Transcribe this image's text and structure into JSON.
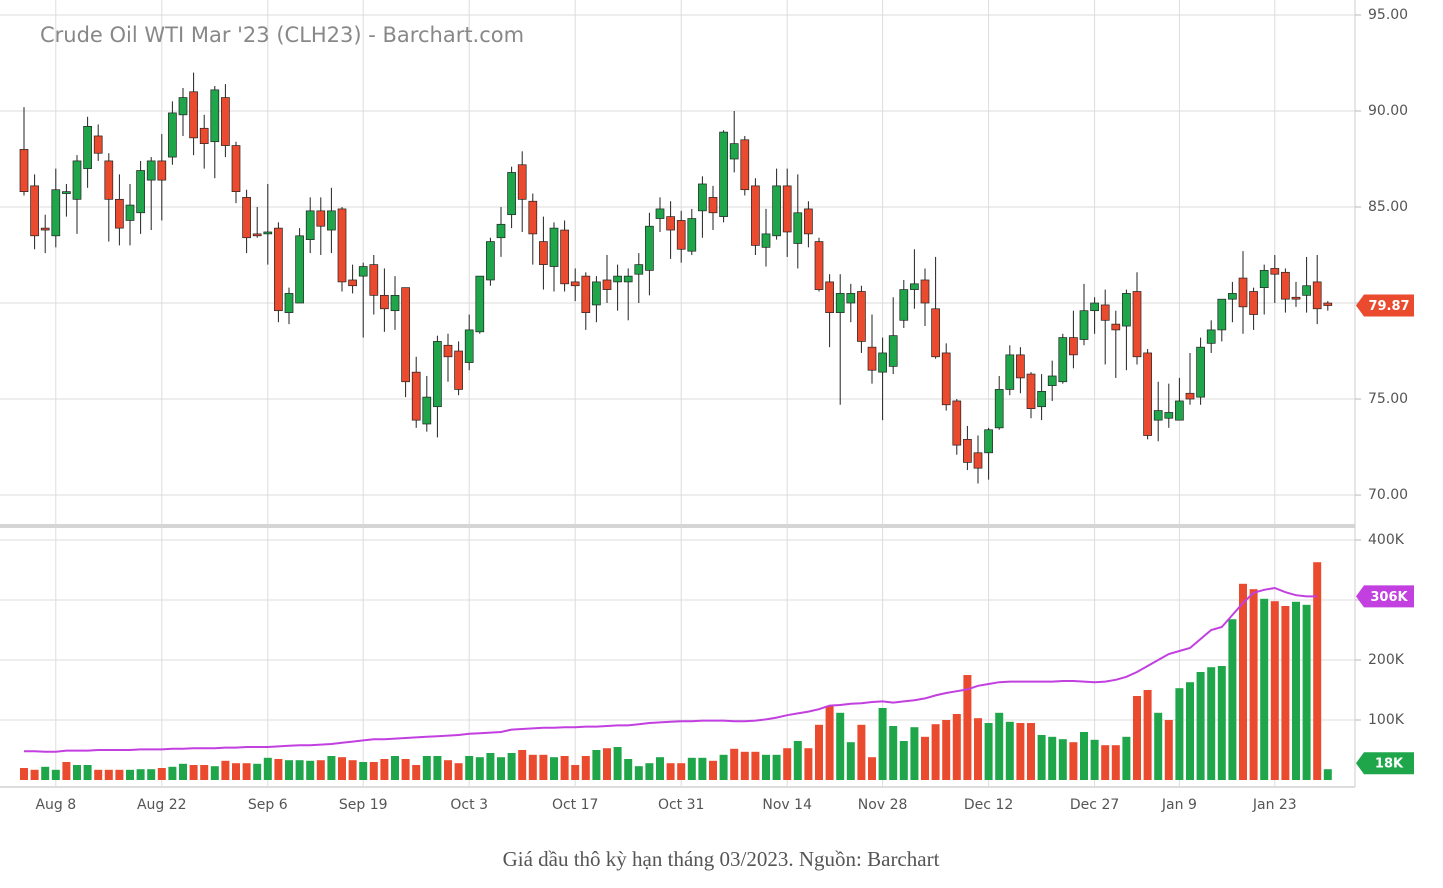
{
  "chart_data": {
    "type": "candlestick",
    "title": "Crude Oil WTI Mar '23 (CLH23) - Barchart.com",
    "categories": [
      null,
      null,
      null,
      "Aug 8",
      null,
      null,
      null,
      null,
      null,
      null,
      null,
      null,
      null,
      "Aug 22",
      null,
      null,
      null,
      null,
      null,
      null,
      null,
      null,
      null,
      "Sep 6",
      null,
      null,
      null,
      null,
      null,
      null,
      null,
      null,
      "Sep 19",
      null,
      null,
      null,
      null,
      null,
      null,
      null,
      null,
      null,
      "Oct 3",
      null,
      null,
      null,
      null,
      null,
      null,
      null,
      null,
      null,
      "Oct 17",
      null,
      null,
      null,
      null,
      null,
      null,
      null,
      null,
      null,
      "Oct 31",
      null,
      null,
      null,
      null,
      null,
      null,
      null,
      null,
      null,
      "Nov 14",
      null,
      null,
      null,
      null,
      null,
      null,
      null,
      null,
      "Nov 28",
      null,
      null,
      null,
      null,
      null,
      null,
      null,
      null,
      null,
      "Dec 12",
      null,
      null,
      null,
      null,
      null,
      null,
      null,
      null,
      null,
      "Dec 27",
      null,
      null,
      null,
      null,
      null,
      null,
      null,
      "Jan 9",
      null,
      null,
      null,
      null,
      null,
      null,
      null,
      null,
      "Jan 23",
      null,
      null,
      null,
      null,
      null
    ],
    "open": [
      88.0,
      86.1,
      83.9,
      83.5,
      85.7,
      85.4,
      87.0,
      88.7,
      87.4,
      85.4,
      84.3,
      84.7,
      86.4,
      87.4,
      87.6,
      89.8,
      91.0,
      89.1,
      88.4,
      90.7,
      88.2,
      85.5,
      83.6,
      83.6,
      83.9,
      79.5,
      80.0,
      83.3,
      84.8,
      83.8,
      84.9,
      81.2,
      81.4,
      82.0,
      80.4,
      79.6,
      80.8,
      76.4,
      73.7,
      74.6,
      77.8,
      77.5,
      76.9,
      78.5,
      81.2,
      83.4,
      84.6,
      87.2,
      85.3,
      83.2,
      81.9,
      83.8,
      81.1,
      81.4,
      79.9,
      81.2,
      81.1,
      81.1,
      81.5,
      81.7,
      84.4,
      84.5,
      84.3,
      82.7,
      84.8,
      85.5,
      84.5,
      87.5,
      88.5,
      86.1,
      82.9,
      83.5,
      86.1,
      83.1,
      84.9,
      83.2,
      81.1,
      79.5,
      80.0,
      80.6,
      77.7,
      76.4,
      76.7,
      79.1,
      80.7,
      81.2,
      79.7,
      77.4,
      74.9,
      72.9,
      72.2,
      72.2,
      73.5,
      75.5,
      77.3,
      76.3,
      74.6,
      75.7,
      75.9,
      78.2,
      78.1,
      79.6,
      79.9,
      78.9,
      78.8,
      80.6,
      77.4,
      73.9,
      74.0,
      73.9,
      75.3,
      75.1,
      77.9,
      78.6,
      80.2,
      81.3,
      80.6,
      80.8,
      81.8,
      81.6,
      80.3,
      80.4,
      81.1,
      80.0
    ],
    "high": [
      90.2,
      86.7,
      84.6,
      87.0,
      86.2,
      87.7,
      89.7,
      89.3,
      87.8,
      86.7,
      86.2,
      87.4,
      87.6,
      88.8,
      90.5,
      91.2,
      92.0,
      89.8,
      91.3,
      91.4,
      88.4,
      85.9,
      85.0,
      86.2,
      84.2,
      80.8,
      83.9,
      85.5,
      85.5,
      86.0,
      85.0,
      82.0,
      82.1,
      82.5,
      81.8,
      81.4,
      80.8,
      77.2,
      76.2,
      78.3,
      78.4,
      78.0,
      79.4,
      81.4,
      83.4,
      85.0,
      87.1,
      87.9,
      85.7,
      84.5,
      84.2,
      84.3,
      81.8,
      81.6,
      81.4,
      82.5,
      82.0,
      81.8,
      82.6,
      84.7,
      85.5,
      85.3,
      84.8,
      84.9,
      86.6,
      86.1,
      89.0,
      90.0,
      88.7,
      86.5,
      84.9,
      87.0,
      87.0,
      86.7,
      85.3,
      83.4,
      81.5,
      81.5,
      81.0,
      80.9,
      79.4,
      78.2,
      80.3,
      81.2,
      82.8,
      81.8,
      82.4,
      77.9,
      75.0,
      73.6,
      73.1,
      73.5,
      76.2,
      77.8,
      77.7,
      76.4,
      76.3,
      77.0,
      78.4,
      79.6,
      81.0,
      80.3,
      80.7,
      79.6,
      80.7,
      81.6,
      77.6,
      75.9,
      75.8,
      76.1,
      77.4,
      78.2,
      79.1,
      80.2,
      81.1,
      82.7,
      80.8,
      82.0,
      82.5,
      81.8,
      81.1,
      82.4,
      82.5,
      80.1
    ],
    "low": [
      85.6,
      82.8,
      82.6,
      82.9,
      84.5,
      83.6,
      86.0,
      87.4,
      83.2,
      83.0,
      83.0,
      83.6,
      83.8,
      84.3,
      87.2,
      88.7,
      87.7,
      87.0,
      86.5,
      87.6,
      85.2,
      82.6,
      83.4,
      82.0,
      79.0,
      78.9,
      80.0,
      82.6,
      82.5,
      82.6,
      80.6,
      80.5,
      78.2,
      79.4,
      78.5,
      78.6,
      75.1,
      73.5,
      73.3,
      73.0,
      75.9,
      75.2,
      76.5,
      78.4,
      80.9,
      82.4,
      83.9,
      83.7,
      82.0,
      80.7,
      80.6,
      80.6,
      80.1,
      78.6,
      79.0,
      80.0,
      79.6,
      79.1,
      80.0,
      80.4,
      83.7,
      82.3,
      82.1,
      82.5,
      83.4,
      83.8,
      84.2,
      86.8,
      85.6,
      82.5,
      81.9,
      83.3,
      82.4,
      81.8,
      82.9,
      80.6,
      77.7,
      74.7,
      79.0,
      77.4,
      75.8,
      73.9,
      76.3,
      78.7,
      79.7,
      78.8,
      77.1,
      74.4,
      72.1,
      71.3,
      70.6,
      70.8,
      73.4,
      75.2,
      75.3,
      74.0,
      73.9,
      74.9,
      75.8,
      76.6,
      77.8,
      78.4,
      76.8,
      76.1,
      76.5,
      76.8,
      72.9,
      72.8,
      73.5,
      73.9,
      74.7,
      74.7,
      77.4,
      78.0,
      79.0,
      78.4,
      78.6,
      79.4,
      80.0,
      79.5,
      79.8,
      79.5,
      78.9,
      79.6
    ],
    "close": [
      85.8,
      83.5,
      83.8,
      85.9,
      85.8,
      87.4,
      89.2,
      87.8,
      85.4,
      83.9,
      85.1,
      86.9,
      87.4,
      86.4,
      89.9,
      90.7,
      88.6,
      88.3,
      91.1,
      88.2,
      85.8,
      83.4,
      83.5,
      83.7,
      79.6,
      80.5,
      83.5,
      84.8,
      84.0,
      84.8,
      81.1,
      80.9,
      81.9,
      80.4,
      79.7,
      80.4,
      75.9,
      73.9,
      75.1,
      78.0,
      77.2,
      75.5,
      78.6,
      81.4,
      83.2,
      84.1,
      86.8,
      85.4,
      83.6,
      82.0,
      83.9,
      81.0,
      80.9,
      79.5,
      81.1,
      80.7,
      81.4,
      81.4,
      82.0,
      84.0,
      84.9,
      83.8,
      82.8,
      84.4,
      86.2,
      84.7,
      88.9,
      88.3,
      85.9,
      83.0,
      83.6,
      86.1,
      83.7,
      84.7,
      83.6,
      80.7,
      79.5,
      80.5,
      80.5,
      78.0,
      76.5,
      77.4,
      78.3,
      80.7,
      81.0,
      80.0,
      77.2,
      74.7,
      72.6,
      71.7,
      71.4,
      73.4,
      75.5,
      77.3,
      76.1,
      74.5,
      75.4,
      76.2,
      78.2,
      77.3,
      79.6,
      80.0,
      79.1,
      78.6,
      80.5,
      77.2,
      73.1,
      74.4,
      74.3,
      74.9,
      75.0,
      77.7,
      78.6,
      80.2,
      80.5,
      79.8,
      79.4,
      81.7,
      81.5,
      80.2,
      80.2,
      80.9,
      79.7,
      79.87
    ],
    "up_color": "#1fa64a",
    "down_color": "#ea4a2e",
    "ylim": [
      68.44,
      95.78
    ],
    "yticks": [
      {
        "value": 70,
        "label": "70.00"
      },
      {
        "value": 75,
        "label": "75.00"
      },
      {
        "value": 80,
        "label": "80.00"
      },
      {
        "value": 85,
        "label": "85.00"
      },
      {
        "value": 90,
        "label": "90.00"
      },
      {
        "value": 95,
        "label": "95.00"
      }
    ],
    "grid": true,
    "volume": {
      "values": [
        20,
        17,
        22,
        17,
        30,
        25,
        25,
        17,
        17,
        17,
        17,
        18,
        18,
        20,
        22,
        27,
        25,
        25,
        23,
        32,
        28,
        28,
        27,
        37,
        35,
        33,
        33,
        32,
        33,
        40,
        38,
        33,
        30,
        30,
        35,
        40,
        35,
        25,
        40,
        40,
        33,
        28,
        40,
        38,
        45,
        38,
        45,
        50,
        42,
        42,
        38,
        40,
        25,
        40,
        50,
        53,
        55,
        35,
        23,
        28,
        38,
        28,
        28,
        37,
        37,
        32,
        42,
        52,
        47,
        47,
        42,
        42,
        53,
        65,
        53,
        92,
        123,
        112,
        63,
        92,
        38,
        120,
        90,
        65,
        88,
        72,
        93,
        100,
        110,
        175,
        103,
        95,
        112,
        97,
        95,
        95,
        75,
        72,
        68,
        63,
        80,
        67,
        58,
        58,
        72,
        140,
        150,
        112,
        100,
        153,
        163,
        180,
        188,
        190,
        268,
        327,
        318,
        302,
        298,
        290,
        297,
        292,
        363,
        18
      ],
      "last_label": "18K",
      "ylim": [
        0,
        420
      ],
      "yticks": [
        {
          "value": 100,
          "label": "100K"
        },
        {
          "value": 200,
          "label": "200K"
        },
        {
          "value": 300,
          "label": "300K"
        },
        {
          "value": 400,
          "label": "400K"
        }
      ]
    },
    "moving_average": {
      "color": "#c23fe0",
      "last_label": "306K",
      "values": [
        48,
        48,
        47,
        47,
        49,
        49,
        49,
        50,
        50,
        50,
        50,
        51,
        51,
        51,
        52,
        52,
        53,
        53,
        53,
        54,
        54,
        55,
        55,
        55,
        56,
        57,
        58,
        58,
        59,
        60,
        62,
        64,
        66,
        68,
        68,
        69,
        70,
        71,
        72,
        73,
        74,
        75,
        77,
        78,
        79,
        80,
        84,
        85,
        86,
        87,
        87,
        88,
        88,
        89,
        89,
        90,
        91,
        91,
        93,
        95,
        96,
        97,
        98,
        98,
        99,
        99,
        99,
        98,
        98,
        99,
        101,
        104,
        108,
        111,
        114,
        118,
        124,
        125,
        127,
        128,
        130,
        131,
        129,
        131,
        133,
        136,
        141,
        145,
        148,
        151,
        157,
        160,
        163,
        164,
        164,
        164,
        164,
        164,
        165,
        165,
        164,
        163,
        164,
        167,
        172,
        180,
        190,
        200,
        210,
        215,
        220,
        235,
        250,
        255,
        275,
        295,
        312,
        317,
        320,
        313,
        308,
        306,
        306,
        null
      ]
    }
  },
  "caption": "Giá dầu thô kỳ hạn tháng 03/2023. Nguồn: Barchart"
}
